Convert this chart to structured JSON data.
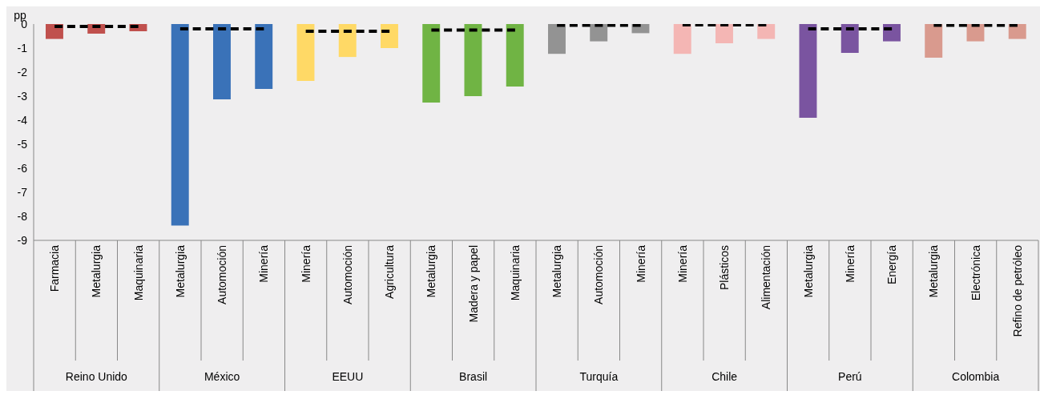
{
  "chart_data": {
    "type": "bar",
    "ylabel": "pp",
    "categories": [
      "Farmacia",
      "Metalurgia",
      "Maquinaria",
      "Metalurgia",
      "Automoción",
      "Minería",
      "Minería",
      "Automoción",
      "Agricultura",
      "Metalurgia",
      "Madera y papel",
      "Maquinaria",
      "Metalurgia",
      "Automoción",
      "Minería",
      "Minería",
      "Plásticos",
      "Alimentación",
      "Metalurgia",
      "Minería",
      "Energía",
      "Metalurgia",
      "Electrónica",
      "Refino de petróleo"
    ],
    "series": [
      {
        "values": [
          -0.62,
          -0.4,
          -0.3,
          -8.38,
          -3.13,
          -2.7,
          -2.37,
          -1.37,
          -1.0,
          -3.27,
          -3.0,
          -2.6,
          -1.24,
          -0.72,
          -0.38,
          -1.24,
          -0.8,
          -0.62,
          -3.9,
          -1.2,
          -0.72,
          -1.4,
          -0.72,
          -0.62
        ],
        "colors": [
          "#c0504d",
          "#c0504d",
          "#c0504d",
          "#3a72b8",
          "#3a72b8",
          "#3a72b8",
          "#ffd966",
          "#ffd966",
          "#ffd966",
          "#70b444",
          "#70b444",
          "#70b444",
          "#939393",
          "#939393",
          "#939393",
          "#f4b6b4",
          "#f4b6b4",
          "#f4b6b4",
          "#7a54a0",
          "#7a54a0",
          "#7a54a0",
          "#d99a8e",
          "#d99a8e",
          "#d99a8e"
        ]
      },
      {
        "type": "line",
        "color": "#000000",
        "line_style": "dashed",
        "values": [
          -0.1,
          -0.1,
          -0.1,
          null,
          null,
          null,
          null,
          null,
          null,
          null,
          null,
          null,
          null,
          null,
          null,
          null,
          null,
          null,
          null,
          null,
          null,
          null,
          null,
          null
        ]
      },
      {
        "type": "line",
        "color": "#000000",
        "line_style": "dashed",
        "values": [
          null,
          null,
          null,
          -0.2,
          -0.2,
          -0.2,
          null,
          null,
          null,
          null,
          null,
          null,
          null,
          null,
          null,
          null,
          null,
          null,
          null,
          null,
          null,
          null,
          null,
          null
        ]
      },
      {
        "type": "line",
        "color": "#000000",
        "line_style": "dashed",
        "values": [
          null,
          null,
          null,
          null,
          null,
          null,
          -0.3,
          -0.3,
          -0.3,
          null,
          null,
          null,
          null,
          null,
          null,
          null,
          null,
          null,
          null,
          null,
          null,
          null,
          null,
          null
        ]
      },
      {
        "type": "line",
        "color": "#000000",
        "line_style": "dashed",
        "values": [
          null,
          null,
          null,
          null,
          null,
          null,
          null,
          null,
          null,
          -0.25,
          -0.25,
          -0.25,
          null,
          null,
          null,
          null,
          null,
          null,
          null,
          null,
          null,
          null,
          null,
          null
        ]
      },
      {
        "type": "line",
        "color": "#000000",
        "line_style": "dashed",
        "values": [
          null,
          null,
          null,
          null,
          null,
          null,
          null,
          null,
          null,
          null,
          null,
          null,
          -0.05,
          -0.05,
          -0.05,
          null,
          null,
          null,
          null,
          null,
          null,
          null,
          null,
          null
        ]
      },
      {
        "type": "line",
        "color": "#000000",
        "line_style": "dashed",
        "values": [
          null,
          null,
          null,
          null,
          null,
          null,
          null,
          null,
          null,
          null,
          null,
          null,
          null,
          null,
          null,
          -0.03,
          -0.03,
          -0.03,
          null,
          null,
          null,
          null,
          null,
          null
        ]
      },
      {
        "type": "line",
        "color": "#000000",
        "line_style": "dashed",
        "values": [
          null,
          null,
          null,
          null,
          null,
          null,
          null,
          null,
          null,
          null,
          null,
          null,
          null,
          null,
          null,
          null,
          null,
          null,
          -0.2,
          -0.2,
          -0.2,
          null,
          null,
          null
        ]
      },
      {
        "type": "line",
        "color": "#000000",
        "line_style": "dashed",
        "values": [
          null,
          null,
          null,
          null,
          null,
          null,
          null,
          null,
          null,
          null,
          null,
          null,
          null,
          null,
          null,
          null,
          null,
          null,
          null,
          null,
          null,
          -0.05,
          -0.05,
          -0.05
        ]
      }
    ],
    "annotations": [
      "Reino Unido",
      "México",
      "EEUU",
      "Brasil",
      "Turquía",
      "Chile",
      "Perú",
      "Colombia"
    ],
    "ylim": [
      -9,
      0
    ],
    "yticks": [
      -9,
      -8,
      -7,
      -6,
      -5,
      -4,
      -3,
      -2,
      -1,
      0
    ],
    "grid": false,
    "marker": "none"
  }
}
